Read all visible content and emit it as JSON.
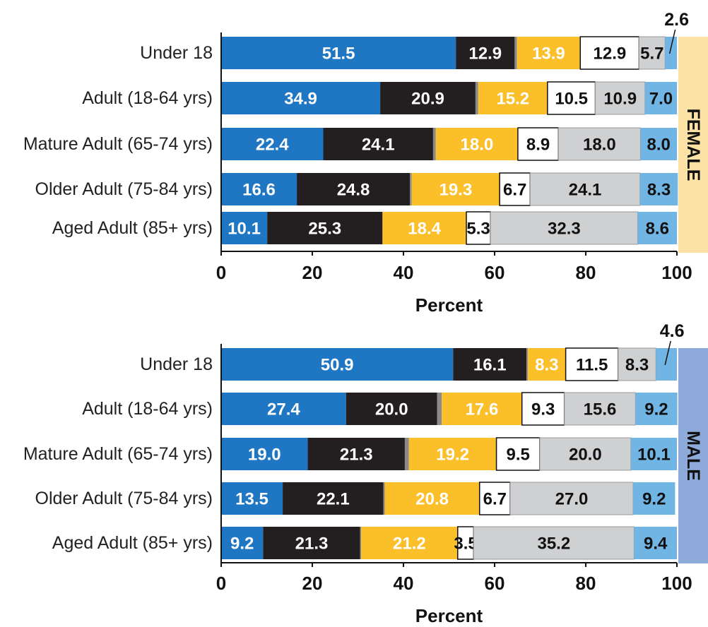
{
  "palette": [
    "#1f77c4",
    "#231f20",
    "#8a8a8a",
    "#fbbf2a",
    "#ffffff",
    "#cfd0d2",
    "#71b5e4"
  ],
  "label_colors": [
    "#ffffff",
    "#ffffff",
    "#ffffff",
    "#ffffff",
    "#111111",
    "#111111",
    "#111111"
  ],
  "chart_data": [
    {
      "type": "bar",
      "orientation": "horizontal",
      "stacked": true,
      "panel_label": "FEMALE",
      "panel_color": "#fde2a6",
      "categories": [
        "Under 18",
        "Adult (18-64 yrs)",
        "Mature Adult (65-74 yrs)",
        "Older Adult (75-84 yrs)",
        "Aged Adult (85+ yrs)"
      ],
      "series": [
        {
          "values": [
            51.5,
            34.9,
            22.4,
            16.6,
            10.1
          ]
        },
        {
          "values": [
            12.9,
            20.9,
            24.1,
            24.8,
            25.3
          ]
        },
        {
          "values": [
            0.5,
            0.6,
            0.6,
            0.4,
            0.0
          ]
        },
        {
          "values": [
            13.9,
            15.2,
            18.0,
            19.3,
            18.4
          ]
        },
        {
          "values": [
            12.9,
            10.5,
            8.9,
            6.7,
            5.3
          ]
        },
        {
          "values": [
            5.7,
            10.9,
            18.0,
            24.1,
            32.3
          ]
        },
        {
          "values": [
            2.6,
            7.0,
            8.0,
            8.3,
            8.6
          ]
        }
      ],
      "data_labels": [
        [
          "51.5",
          "12.9",
          "",
          "13.9",
          "12.9",
          "5.7",
          ""
        ],
        [
          "34.9",
          "20.9",
          "",
          "15.2",
          "10.5",
          "10.9",
          "7.0"
        ],
        [
          "22.4",
          "24.1",
          "",
          "18.0",
          "8.9",
          "18.0",
          "8.0"
        ],
        [
          "16.6",
          "24.8",
          "",
          "19.3",
          "6.7",
          "24.1",
          "8.3"
        ],
        [
          "10.1",
          "25.3",
          "",
          "18.4",
          "5.3",
          "32.3",
          "8.6"
        ]
      ],
      "callout": {
        "text": "2.6",
        "category_index": 0,
        "series_index": 6
      },
      "xlim": [
        0,
        100
      ],
      "xticks": [
        "0",
        "20",
        "40",
        "60",
        "80",
        "100"
      ],
      "xlabel": "Percent"
    },
    {
      "type": "bar",
      "orientation": "horizontal",
      "stacked": true,
      "panel_label": "MALE",
      "panel_color": "#8eaadb",
      "categories": [
        "Under 18",
        "Adult (18-64 yrs)",
        "Mature Adult (65-74 yrs)",
        "Older Adult (75-84 yrs)",
        "Aged Adult (85+ yrs)"
      ],
      "series": [
        {
          "values": [
            50.9,
            27.4,
            19.0,
            13.5,
            9.2
          ]
        },
        {
          "values": [
            16.1,
            20.0,
            21.3,
            22.1,
            21.3
          ]
        },
        {
          "values": [
            0.3,
            1.0,
            0.9,
            0.3,
            0.2
          ]
        },
        {
          "values": [
            8.3,
            17.6,
            19.2,
            20.8,
            21.2
          ]
        },
        {
          "values": [
            11.5,
            9.3,
            9.5,
            6.7,
            3.5
          ]
        },
        {
          "values": [
            8.3,
            15.6,
            20.0,
            27.0,
            35.2
          ]
        },
        {
          "values": [
            4.6,
            9.2,
            10.1,
            9.2,
            9.4
          ]
        }
      ],
      "data_labels": [
        [
          "50.9",
          "16.1",
          "",
          "8.3",
          "11.5",
          "8.3",
          ""
        ],
        [
          "27.4",
          "20.0",
          "",
          "17.6",
          "9.3",
          "15.6",
          "9.2"
        ],
        [
          "19.0",
          "21.3",
          "",
          "19.2",
          "9.5",
          "20.0",
          "10.1"
        ],
        [
          "13.5",
          "22.1",
          "",
          "20.8",
          "6.7",
          "27.0",
          "9.2"
        ],
        [
          "9.2",
          "21.3",
          "",
          "21.2",
          "3.5",
          "35.2",
          "9.4"
        ]
      ],
      "callout": {
        "text": "4.6",
        "category_index": 0,
        "series_index": 6
      },
      "xlim": [
        0,
        100
      ],
      "xticks": [
        "0",
        "20",
        "40",
        "60",
        "80",
        "100"
      ],
      "xlabel": "Percent"
    }
  ]
}
